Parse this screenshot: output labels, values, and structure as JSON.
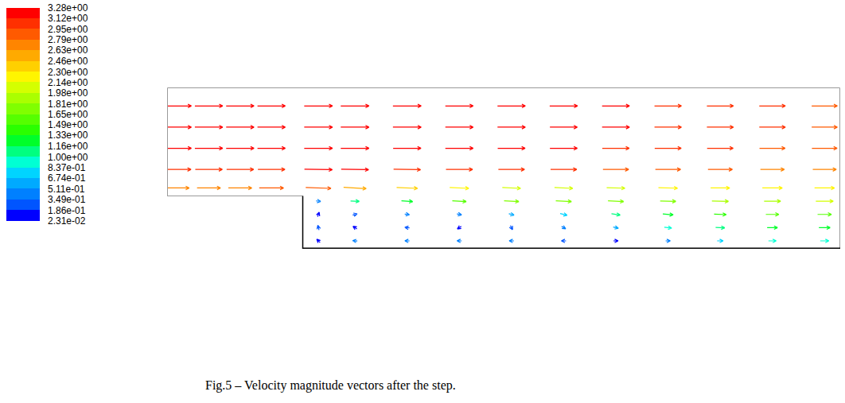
{
  "chart_data": {
    "type": "vector",
    "caption": "Fig.5 – Velocity magnitude vectors after the step.",
    "tick_labels": false,
    "xlim": [
      -2.6,
      10.3
    ],
    "ylim": [
      0,
      3.05
    ],
    "geometry": {
      "step_x": 0,
      "step_height": 1
    },
    "colorbar": {
      "range": [
        0.0231,
        3.28
      ],
      "ticks": [
        {
          "value": 3.28,
          "label": "3.28e+00"
        },
        {
          "value": 3.12,
          "label": "3.12e+00"
        },
        {
          "value": 2.95,
          "label": "2.95e+00"
        },
        {
          "value": 2.79,
          "label": "2.79e+00"
        },
        {
          "value": 2.63,
          "label": "2.63e+00"
        },
        {
          "value": 2.46,
          "label": "2.46e+00"
        },
        {
          "value": 2.3,
          "label": "2.30e+00"
        },
        {
          "value": 2.14,
          "label": "2.14e+00"
        },
        {
          "value": 1.98,
          "label": "1.98e+00"
        },
        {
          "value": 1.81,
          "label": "1.81e+00"
        },
        {
          "value": 1.65,
          "label": "1.65e+00"
        },
        {
          "value": 1.49,
          "label": "1.49e+00"
        },
        {
          "value": 1.33,
          "label": "1.33e+00"
        },
        {
          "value": 1.16,
          "label": "1.16e+00"
        },
        {
          "value": 1.0,
          "label": "1.00e+00"
        },
        {
          "value": 0.837,
          "label": "8.37e-01"
        },
        {
          "value": 0.674,
          "label": "6.74e-01"
        },
        {
          "value": 0.511,
          "label": "5.11e-01"
        },
        {
          "value": 0.349,
          "label": "3.49e-01"
        },
        {
          "value": 0.186,
          "label": "1.86e-01"
        },
        {
          "value": 0.0231,
          "label": "2.31e-02"
        }
      ],
      "colors": [
        "#ff0000",
        "#ff3000",
        "#ff5a00",
        "#ff8500",
        "#ffaa00",
        "#ffd000",
        "#fff500",
        "#d4ff00",
        "#aaff00",
        "#80ff00",
        "#55ff00",
        "#2aff00",
        "#00ff2a",
        "#00ff80",
        "#00ffd4",
        "#00d4ff",
        "#00aaff",
        "#0080ff",
        "#0055ff",
        "#0000ff"
      ]
    },
    "vectors": [
      [
        -2.4,
        1.15,
        2.7,
        0
      ],
      [
        -2.4,
        1.5,
        3.1,
        0
      ],
      [
        -2.4,
        1.9,
        3.2,
        0
      ],
      [
        -2.4,
        2.3,
        3.2,
        0
      ],
      [
        -2.4,
        2.7,
        3.2,
        0
      ],
      [
        -1.8,
        1.15,
        2.7,
        0
      ],
      [
        -1.8,
        1.5,
        3.1,
        0
      ],
      [
        -1.8,
        1.9,
        3.2,
        0
      ],
      [
        -1.8,
        2.3,
        3.2,
        0
      ],
      [
        -1.8,
        2.7,
        3.2,
        0
      ],
      [
        -1.2,
        1.15,
        2.7,
        0
      ],
      [
        -1.2,
        1.5,
        3.1,
        0
      ],
      [
        -1.2,
        1.9,
        3.2,
        0
      ],
      [
        -1.2,
        2.3,
        3.2,
        0
      ],
      [
        -1.2,
        2.7,
        3.2,
        0
      ],
      [
        -0.6,
        1.15,
        2.8,
        0
      ],
      [
        -0.6,
        1.5,
        3.1,
        0
      ],
      [
        -0.6,
        1.9,
        3.2,
        0
      ],
      [
        -0.6,
        2.3,
        3.2,
        0
      ],
      [
        -0.6,
        2.7,
        3.2,
        0
      ],
      [
        0.3,
        1.15,
        2.9,
        -0.1
      ],
      [
        1,
        1.15,
        2.6,
        -0.15
      ],
      [
        2,
        1.15,
        2.4,
        -0.1
      ],
      [
        3,
        1.15,
        2.2,
        -0.1
      ],
      [
        4,
        1.15,
        2.1,
        -0.1
      ],
      [
        5,
        1.15,
        2.1,
        -0.1
      ],
      [
        6,
        1.15,
        2.1,
        -0.05
      ],
      [
        7,
        1.15,
        2.2,
        -0.05
      ],
      [
        8,
        1.15,
        2.2,
        0
      ],
      [
        9,
        1.15,
        2.3,
        0
      ],
      [
        10,
        1.15,
        2.3,
        0
      ],
      [
        0.3,
        1.5,
        3.2,
        -0.05
      ],
      [
        1,
        1.5,
        3.15,
        -0.05
      ],
      [
        2,
        1.5,
        3.1,
        -0.05
      ],
      [
        3,
        1.5,
        3.05,
        0
      ],
      [
        4,
        1.5,
        3.0,
        0
      ],
      [
        5,
        1.5,
        3.0,
        0
      ],
      [
        6,
        1.5,
        2.95,
        0
      ],
      [
        7,
        1.5,
        2.9,
        0
      ],
      [
        8,
        1.5,
        2.8,
        0
      ],
      [
        9,
        1.5,
        2.75,
        0
      ],
      [
        10,
        1.5,
        2.7,
        0
      ],
      [
        0.3,
        1.9,
        3.25,
        0
      ],
      [
        1,
        1.9,
        3.25,
        0
      ],
      [
        2,
        1.9,
        3.2,
        0
      ],
      [
        3,
        1.9,
        3.2,
        0
      ],
      [
        4,
        1.9,
        3.15,
        0
      ],
      [
        5,
        1.9,
        3.15,
        0
      ],
      [
        6,
        1.9,
        3.1,
        0
      ],
      [
        7,
        1.9,
        3.05,
        0
      ],
      [
        8,
        1.9,
        3.0,
        0
      ],
      [
        9,
        1.9,
        2.95,
        0
      ],
      [
        10,
        1.9,
        2.9,
        0
      ],
      [
        0.3,
        2.3,
        3.25,
        0
      ],
      [
        1,
        2.3,
        3.25,
        0
      ],
      [
        2,
        2.3,
        3.25,
        0
      ],
      [
        3,
        2.3,
        3.2,
        0
      ],
      [
        4,
        2.3,
        3.2,
        0
      ],
      [
        5,
        2.3,
        3.15,
        0
      ],
      [
        6,
        2.3,
        3.15,
        0
      ],
      [
        7,
        2.3,
        3.1,
        0
      ],
      [
        8,
        2.3,
        3.05,
        0
      ],
      [
        9,
        2.3,
        3.0,
        0
      ],
      [
        10,
        2.3,
        2.95,
        0
      ],
      [
        0.3,
        2.7,
        3.25,
        0
      ],
      [
        1,
        2.7,
        3.25,
        0
      ],
      [
        2,
        2.7,
        3.25,
        0
      ],
      [
        3,
        2.7,
        3.2,
        0
      ],
      [
        4,
        2.7,
        3.2,
        0
      ],
      [
        5,
        2.7,
        3.2,
        0
      ],
      [
        6,
        2.7,
        3.15,
        0
      ],
      [
        7,
        2.7,
        3.1,
        0
      ],
      [
        8,
        2.7,
        3.05,
        0
      ],
      [
        9,
        2.7,
        3.0,
        0
      ],
      [
        10,
        2.7,
        2.95,
        0
      ],
      [
        0.3,
        0.9,
        0.4,
        -0.05
      ],
      [
        1,
        0.9,
        1.0,
        -0.05
      ],
      [
        2,
        0.9,
        1.3,
        -0.1
      ],
      [
        3,
        0.9,
        1.6,
        -0.1
      ],
      [
        4,
        0.9,
        1.7,
        -0.1
      ],
      [
        5,
        0.9,
        1.8,
        -0.1
      ],
      [
        6,
        0.9,
        1.8,
        -0.1
      ],
      [
        7,
        0.9,
        1.8,
        -0.05
      ],
      [
        8,
        0.9,
        1.9,
        -0.05
      ],
      [
        9,
        0.9,
        1.9,
        0
      ],
      [
        10,
        0.9,
        2.0,
        0
      ],
      [
        0.3,
        0.65,
        0.05,
        0.15
      ],
      [
        1,
        0.65,
        0.2,
        0.05
      ],
      [
        2,
        0.65,
        0.35,
        -0.05
      ],
      [
        3,
        0.65,
        0.5,
        -0.1
      ],
      [
        4,
        0.65,
        0.6,
        -0.15
      ],
      [
        5,
        0.65,
        0.8,
        -0.2
      ],
      [
        6,
        0.65,
        1.0,
        -0.15
      ],
      [
        7,
        0.65,
        1.2,
        -0.1
      ],
      [
        8,
        0.65,
        1.4,
        -0.05
      ],
      [
        9,
        0.65,
        1.5,
        0
      ],
      [
        10,
        0.65,
        1.6,
        0
      ],
      [
        0.3,
        0.4,
        -0.05,
        0.2
      ],
      [
        1,
        0.4,
        -0.15,
        0.1
      ],
      [
        2,
        0.4,
        -0.2,
        0.02
      ],
      [
        3,
        0.4,
        -0.15,
        -0.1
      ],
      [
        4,
        0.4,
        0.1,
        -0.2
      ],
      [
        5,
        0.4,
        0.35,
        -0.2
      ],
      [
        6,
        0.4,
        0.6,
        -0.15
      ],
      [
        7,
        0.4,
        0.85,
        -0.1
      ],
      [
        8,
        0.4,
        1.05,
        -0.05
      ],
      [
        9,
        0.4,
        1.2,
        0
      ],
      [
        10,
        0.4,
        1.3,
        0
      ],
      [
        0.3,
        0.15,
        -0.1,
        0.1
      ],
      [
        1,
        0.15,
        -0.35,
        0.02
      ],
      [
        2,
        0.15,
        -0.5,
        0
      ],
      [
        3,
        0.15,
        -0.5,
        0
      ],
      [
        4,
        0.15,
        -0.4,
        0
      ],
      [
        5,
        0.15,
        -0.2,
        0
      ],
      [
        6,
        0.15,
        0.1,
        0
      ],
      [
        7,
        0.15,
        0.4,
        0
      ],
      [
        8,
        0.15,
        0.7,
        0
      ],
      [
        9,
        0.15,
        0.9,
        0
      ],
      [
        10,
        0.15,
        1.0,
        0
      ]
    ]
  }
}
